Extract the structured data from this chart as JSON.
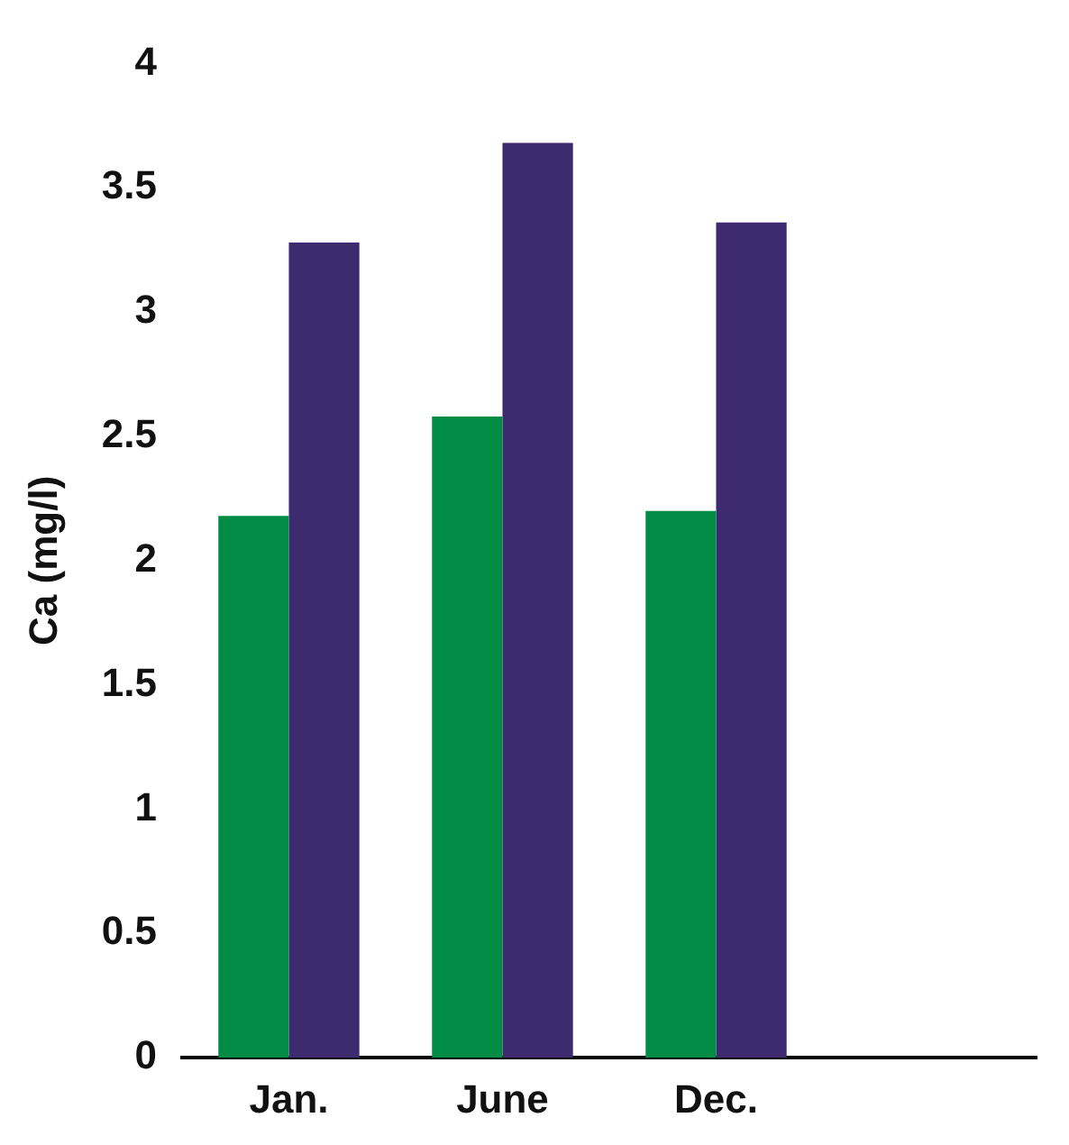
{
  "chart_data": {
    "type": "bar",
    "ylabel": "Ca (mg/l)",
    "categories": [
      "Jan.",
      "June",
      "Dec.",
      null
    ],
    "series": [
      {
        "color": "#008c45",
        "values": [
          2.18,
          2.58,
          2.2,
          null
        ]
      },
      {
        "color": "#3e2a6e",
        "values": [
          3.28,
          3.68,
          3.36,
          null
        ]
      }
    ],
    "ylim": [
      0,
      4
    ],
    "yticks": [
      0,
      0.5,
      1,
      1.5,
      2,
      2.5,
      3,
      3.5,
      4
    ],
    "grid": false,
    "legend": false
  }
}
